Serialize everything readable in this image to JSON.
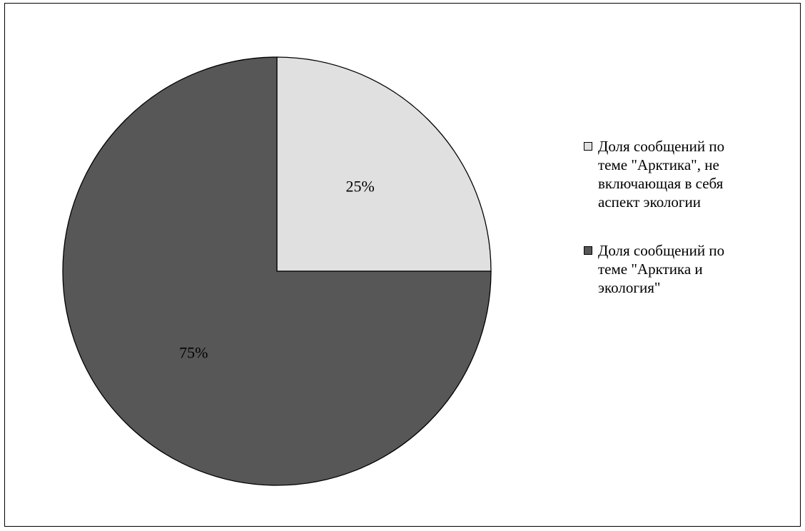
{
  "chart_data": {
    "type": "pie",
    "title": "",
    "series": [
      {
        "name": "Доля сообщений по теме \"Арктика\",  не включающая в себя аспект экологии",
        "value": 25,
        "label": "25%",
        "color": "#e0e0e0"
      },
      {
        "name": "Доля сообщений по теме \"Арктика  и экология\"",
        "value": 75,
        "label": "75%",
        "color": "#575757"
      }
    ],
    "legend_position": "right",
    "start_angle_deg": 0,
    "direction": "clockwise"
  },
  "legend": {
    "items": [
      {
        "text": "Доля сообщений по\nтеме \"Арктика\",  не\nвключающая в себя\nаспект экологии"
      },
      {
        "text": "Доля сообщений по\nтеме \"Арктика  и\nэкология\""
      }
    ]
  }
}
